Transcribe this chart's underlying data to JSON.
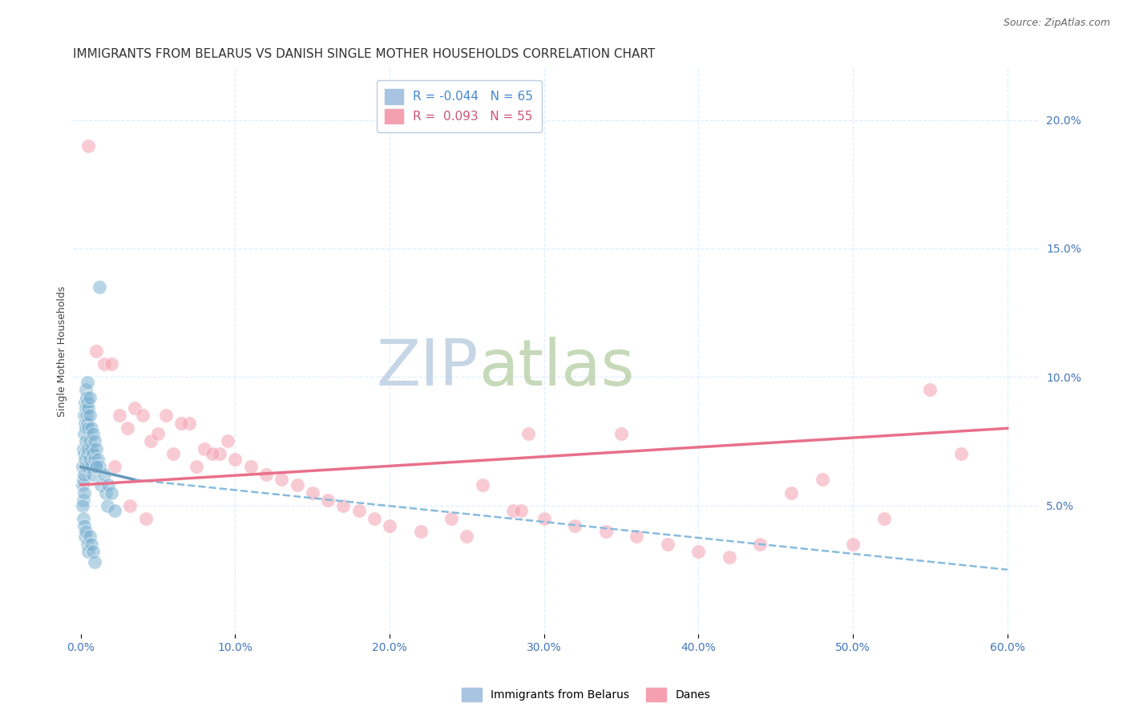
{
  "title": "IMMIGRANTS FROM BELARUS VS DANISH SINGLE MOTHER HOUSEHOLDS CORRELATION CHART",
  "source": "Source: ZipAtlas.com",
  "ylabel": "Single Mother Households",
  "x_tick_labels": [
    "0.0%",
    "10.0%",
    "20.0%",
    "30.0%",
    "40.0%",
    "50.0%",
    "60.0%"
  ],
  "x_tick_values": [
    0.0,
    10.0,
    20.0,
    30.0,
    40.0,
    50.0,
    60.0
  ],
  "y_tick_labels_right": [
    "5.0%",
    "10.0%",
    "15.0%",
    "20.0%"
  ],
  "y_tick_values": [
    5.0,
    10.0,
    15.0,
    20.0
  ],
  "legend_entry1": {
    "color": "#a8c4e0",
    "R": "-0.044",
    "N": "65",
    "label": "Immigrants from Belarus"
  },
  "legend_entry2": {
    "color": "#f4a0b0",
    "R": "0.093",
    "N": "55",
    "label": "Danes"
  },
  "watermark_zip": "ZIP",
  "watermark_atlas": "atlas",
  "watermark_color_zip": "#c8d8ec",
  "watermark_color_atlas": "#c8d8b8",
  "blue_scatter_color": "#7fb3d3",
  "pink_scatter_color": "#f4a0b0",
  "blue_line_color": "#6699bb",
  "pink_line_color": "#e8708a",
  "background_color": "#ffffff",
  "grid_color": "#ddeeff",
  "blue_points_x": [
    0.1,
    0.1,
    0.15,
    0.15,
    0.15,
    0.2,
    0.2,
    0.2,
    0.2,
    0.2,
    0.25,
    0.25,
    0.25,
    0.3,
    0.3,
    0.3,
    0.3,
    0.3,
    0.35,
    0.35,
    0.35,
    0.4,
    0.4,
    0.4,
    0.4,
    0.5,
    0.5,
    0.5,
    0.5,
    0.6,
    0.6,
    0.6,
    0.6,
    0.7,
    0.7,
    0.7,
    0.8,
    0.8,
    0.8,
    0.9,
    0.9,
    1.0,
    1.0,
    1.1,
    1.2,
    1.3,
    1.5,
    1.6,
    1.7,
    1.8,
    2.0,
    2.2,
    0.1,
    0.15,
    0.2,
    0.25,
    0.3,
    0.4,
    0.5,
    0.6,
    0.7,
    0.8,
    0.9,
    1.0,
    1.2
  ],
  "blue_points_y": [
    6.5,
    5.8,
    7.2,
    6.0,
    5.2,
    8.5,
    7.8,
    7.0,
    6.2,
    5.5,
    9.0,
    8.2,
    6.8,
    9.5,
    8.8,
    8.0,
    7.5,
    6.5,
    9.2,
    8.5,
    7.2,
    9.8,
    9.0,
    8.2,
    7.0,
    8.8,
    8.0,
    7.2,
    6.5,
    9.2,
    8.5,
    7.5,
    6.8,
    8.0,
    7.2,
    6.5,
    7.8,
    7.0,
    6.2,
    7.5,
    6.8,
    7.2,
    6.5,
    6.8,
    6.5,
    5.8,
    6.2,
    5.5,
    5.0,
    5.8,
    5.5,
    4.8,
    5.0,
    4.5,
    4.2,
    3.8,
    4.0,
    3.5,
    3.2,
    3.8,
    3.5,
    3.2,
    2.8,
    6.5,
    13.5
  ],
  "pink_points_x": [
    0.5,
    1.0,
    1.5,
    2.0,
    2.5,
    3.0,
    3.5,
    4.0,
    4.5,
    5.0,
    6.0,
    7.0,
    7.5,
    8.0,
    9.0,
    10.0,
    11.0,
    12.0,
    13.0,
    14.0,
    15.0,
    16.0,
    17.0,
    18.0,
    19.0,
    20.0,
    22.0,
    24.0,
    25.0,
    26.0,
    28.0,
    29.0,
    30.0,
    32.0,
    34.0,
    35.0,
    36.0,
    38.0,
    40.0,
    42.0,
    44.0,
    46.0,
    48.0,
    50.0,
    52.0,
    55.0,
    57.0,
    2.2,
    3.2,
    4.2,
    5.5,
    6.5,
    8.5,
    9.5,
    28.5
  ],
  "pink_points_y": [
    19.0,
    11.0,
    10.5,
    10.5,
    8.5,
    8.0,
    8.8,
    8.5,
    7.5,
    7.8,
    7.0,
    8.2,
    6.5,
    7.2,
    7.0,
    6.8,
    6.5,
    6.2,
    6.0,
    5.8,
    5.5,
    5.2,
    5.0,
    4.8,
    4.5,
    4.2,
    4.0,
    4.5,
    3.8,
    5.8,
    4.8,
    7.8,
    4.5,
    4.2,
    4.0,
    7.8,
    3.8,
    3.5,
    3.2,
    3.0,
    3.5,
    5.5,
    6.0,
    3.5,
    4.5,
    9.5,
    7.0,
    6.5,
    5.0,
    4.5,
    8.5,
    8.2,
    7.0,
    7.5,
    4.8
  ],
  "blue_trend_x": [
    0.0,
    3.5,
    60.0
  ],
  "blue_trend_y": [
    6.5,
    6.0,
    2.5
  ],
  "pink_trend_x": [
    0.0,
    60.0
  ],
  "pink_trend_y_start": 5.8,
  "pink_trend_y_end": 8.0,
  "xlim": [
    -0.5,
    62
  ],
  "ylim": [
    0,
    22
  ],
  "title_fontsize": 11,
  "source_fontsize": 9,
  "axis_label_fontsize": 9,
  "tick_fontsize": 10,
  "legend_fontsize": 11
}
